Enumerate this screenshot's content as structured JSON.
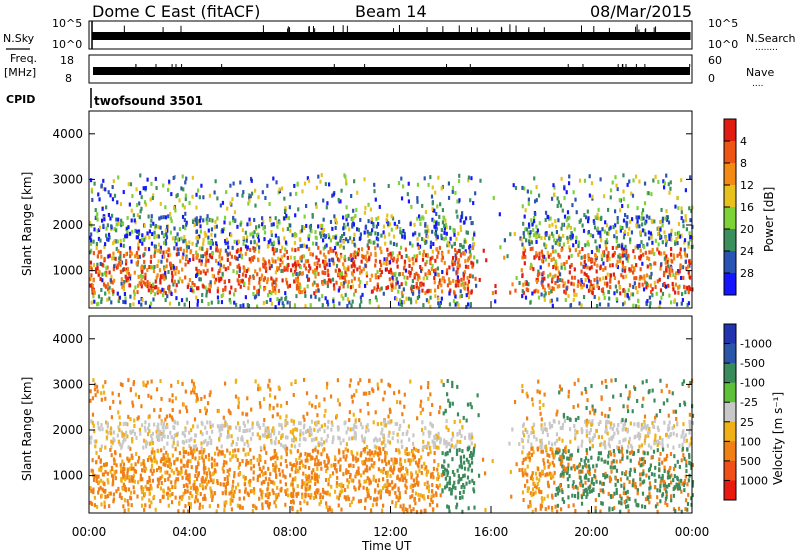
{
  "header": {
    "radar": "Dome C East (fitACF)",
    "beam": "Beam 14",
    "date": "08/Mar/2015"
  },
  "labels": {
    "nsky": "N.Sky",
    "nsearch": "N.Search",
    "nsearch_dots": "........",
    "freq": "Freq.",
    "mhz": "[MHz]",
    "nave": "Nave",
    "nave_dots": "....",
    "cpid": "CPID",
    "cpid_value": "twofsound 3501"
  },
  "chart_data": [
    {
      "type": "line",
      "name": "noise-panel",
      "left_ticks": [
        "10^5",
        "10^0"
      ],
      "right_ticks": [
        "10^5",
        "10^0"
      ],
      "note": "N.Sky and N.Search noise levels vs time"
    },
    {
      "type": "line",
      "name": "freq-nave-panel",
      "left_ticks": [
        "18",
        "8"
      ],
      "right_ticks": [
        "60",
        "0"
      ],
      "freq_ylim": [
        8,
        18
      ],
      "nave_ylim": [
        0,
        60
      ]
    },
    {
      "type": "heatmap",
      "name": "power-panel",
      "ylabel": "Slant Range [km]",
      "yticks": [
        1000,
        2000,
        3000,
        4000
      ],
      "ylim": [
        180,
        4500
      ],
      "xlim_hours": [
        0,
        24
      ],
      "colorbar": {
        "label": "Power [dB]",
        "ticks": [
          "4",
          "8",
          "12",
          "16",
          "20",
          "24",
          "28"
        ],
        "colors": [
          "#1515ff",
          "#2a54b4",
          "#3a8f5c",
          "#7dd238",
          "#e8c21c",
          "#f28a14",
          "#ee5414",
          "#e01d10"
        ]
      }
    },
    {
      "type": "heatmap",
      "name": "velocity-panel",
      "ylabel": "Slant Range [km]",
      "yticks": [
        1000,
        2000,
        3000,
        4000
      ],
      "ylim": [
        180,
        4500
      ],
      "xlim_hours": [
        0,
        24
      ],
      "xlabel": "Time UT",
      "xticks": [
        "00:00",
        "04:00",
        "08:00",
        "12:00",
        "16:00",
        "20:00",
        "00:00"
      ],
      "colorbar": {
        "label": "Velocity [m s⁻¹]",
        "ticks": [
          "1000",
          "500",
          "100",
          "25",
          "-25",
          "-100",
          "-500",
          "-1000"
        ],
        "colors": [
          "#2233b0",
          "#2b55a8",
          "#3b8a5a",
          "#5fc03a",
          "#c8c8c8",
          "#f0b018",
          "#f07f16",
          "#f05018",
          "#e81a10"
        ]
      }
    }
  ]
}
